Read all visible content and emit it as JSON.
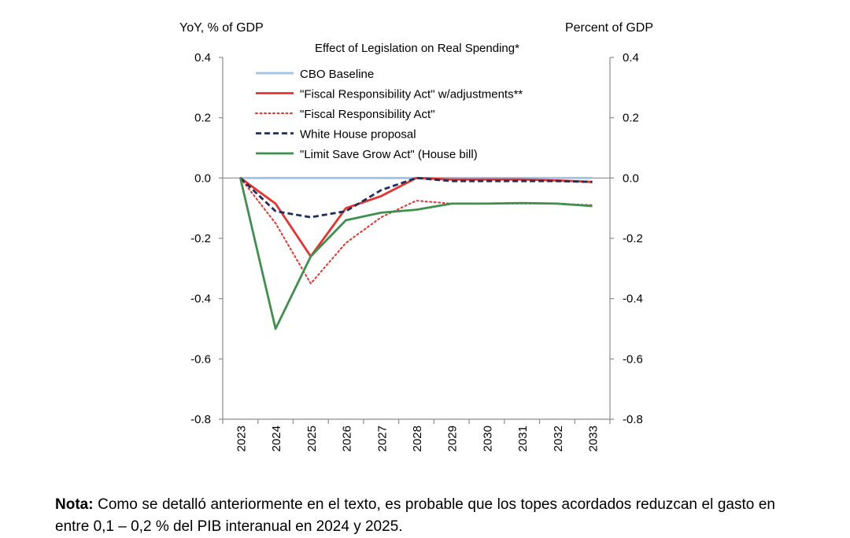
{
  "chart_data": {
    "type": "line",
    "title": "Effect of Legislation on Real Spending*",
    "left_axis_label": "YoY, % of GDP",
    "right_axis_label": "Percent of GDP",
    "ylim": [
      -0.8,
      0.4
    ],
    "yticks": [
      0.4,
      0.2,
      0.0,
      -0.2,
      -0.4,
      -0.6,
      -0.8
    ],
    "ytick_labels": [
      "0.4",
      "0.2",
      "0.0",
      "-0.2",
      "-0.4",
      "-0.6",
      "-0.8"
    ],
    "categories": [
      "2023",
      "2024",
      "2025",
      "2026",
      "2027",
      "2028",
      "2029",
      "2030",
      "2031",
      "2032",
      "2033"
    ],
    "legend_position": "top-right",
    "series": [
      {
        "name": "CBO Baseline",
        "color": "#9dc3e6",
        "style": "solid",
        "values": [
          0,
          0,
          0,
          0,
          0,
          0,
          0,
          0,
          0,
          0,
          0
        ]
      },
      {
        "name": "\"Fiscal Responsibility Act\" w/adjustments**",
        "color": "#e8322d",
        "style": "solid",
        "values": [
          0,
          -0.085,
          -0.26,
          -0.1,
          -0.06,
          0.0,
          -0.005,
          -0.005,
          -0.005,
          -0.008,
          -0.013
        ]
      },
      {
        "name": "\"Fiscal Responsibility Act\"",
        "color": "#e8322d",
        "style": "dotted",
        "values": [
          0,
          -0.15,
          -0.35,
          -0.215,
          -0.13,
          -0.075,
          -0.085,
          -0.085,
          -0.085,
          -0.085,
          -0.09
        ]
      },
      {
        "name": "White House proposal",
        "color": "#1f2f5c",
        "style": "dashed",
        "values": [
          0,
          -0.11,
          -0.13,
          -0.11,
          -0.04,
          0.0,
          -0.01,
          -0.01,
          -0.01,
          -0.01,
          -0.013
        ]
      },
      {
        "name": "\"Limit Save Grow Act\" (House bill)",
        "color": "#3f8f4f",
        "style": "solid",
        "values": [
          0,
          -0.5,
          -0.26,
          -0.14,
          -0.115,
          -0.105,
          -0.085,
          -0.085,
          -0.083,
          -0.085,
          -0.093
        ]
      }
    ]
  },
  "note": {
    "label": "Nota:",
    "text": " Como se detalló anteriormente en el texto, es probable que los topes acordados reduzcan el gasto en entre 0,1 – 0,2 % del PIB interanual en 2024 y 2025."
  }
}
